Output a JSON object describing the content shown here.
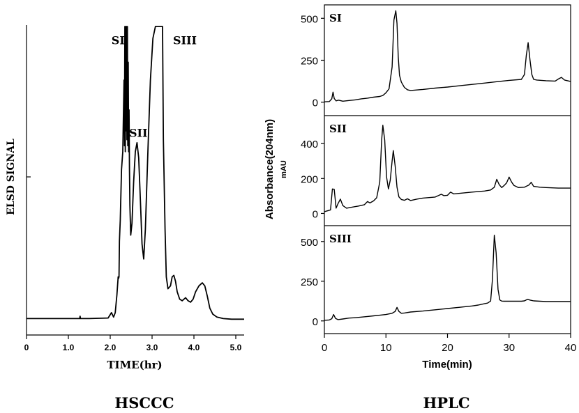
{
  "captions": {
    "left": "HSCCC",
    "right": "HPLC"
  },
  "chart_data": [
    {
      "type": "line",
      "id": "hsccc",
      "xlabel": "TIME(hr)",
      "ylabel": "ELSD  SIGNAL",
      "caption": "HSCCC",
      "xlim": [
        0,
        5.2
      ],
      "ylim": [
        0,
        1
      ],
      "xticks": [
        "0",
        "1.0",
        "2.0",
        "3.0",
        "4.0",
        "5.0"
      ],
      "xtick_values": [
        0,
        1.0,
        2.0,
        3.0,
        4.0,
        5.0
      ],
      "annotations": [
        {
          "text": "SI",
          "x": 2.03,
          "y": 0.94
        },
        {
          "text": "SII",
          "x": 2.45,
          "y": 0.63
        },
        {
          "text": "SIII",
          "x": 3.5,
          "y": 0.94
        }
      ],
      "series": [
        {
          "x": [
            0,
            1.27,
            1.28,
            1.29,
            1.3,
            1.5,
            1.95,
            2.03,
            2.08,
            2.12,
            2.16,
            2.18,
            2.19,
            2.2,
            2.21,
            2.22,
            2.24,
            2.27,
            2.3,
            2.33,
            2.34,
            2.35,
            2.36,
            2.37,
            2.38,
            2.39,
            2.4,
            2.41,
            2.42,
            2.43,
            2.44,
            2.45,
            2.46,
            2.47,
            2.49,
            2.52,
            2.56,
            2.6,
            2.64,
            2.68,
            2.72,
            2.76,
            2.8,
            2.84,
            2.9,
            2.96,
            3.02,
            3.08,
            3.1,
            3.25,
            3.27,
            3.31,
            3.34,
            3.38,
            3.44,
            3.48,
            3.52,
            3.56,
            3.6,
            3.66,
            3.72,
            3.8,
            3.86,
            3.92,
            3.98,
            4.04,
            4.12,
            4.2,
            4.26,
            4.32,
            4.38,
            4.45,
            4.55,
            4.7,
            4.9,
            5.2
          ],
          "y": [
            0.02,
            0.02,
            0.028,
            0.02,
            0.02,
            0.02,
            0.022,
            0.04,
            0.025,
            0.04,
            0.1,
            0.14,
            0.16,
            0.155,
            0.16,
            0.28,
            0.35,
            0.52,
            0.58,
            0.82,
            0.6,
            1.0,
            0.58,
            1.0,
            0.65,
            1.0,
            0.62,
            1.0,
            0.6,
            0.88,
            0.58,
            0.72,
            0.52,
            0.4,
            0.3,
            0.34,
            0.48,
            0.58,
            0.61,
            0.56,
            0.42,
            0.27,
            0.22,
            0.32,
            0.58,
            0.82,
            0.96,
            1.0,
            1.0,
            1.0,
            0.62,
            0.32,
            0.16,
            0.12,
            0.13,
            0.16,
            0.165,
            0.145,
            0.11,
            0.085,
            0.08,
            0.09,
            0.08,
            0.075,
            0.085,
            0.11,
            0.13,
            0.14,
            0.13,
            0.095,
            0.055,
            0.035,
            0.025,
            0.02,
            0.018,
            0.018
          ]
        }
      ]
    },
    {
      "type": "line",
      "id": "hplc",
      "xlabel": "Time(min)",
      "ylabel": "Absorbance(204nm)",
      "ylabel_unit": "mAU",
      "caption": "HPLC",
      "xlim": [
        0,
        40
      ],
      "xticks": [
        "0",
        "10",
        "20",
        "30",
        "40"
      ],
      "xtick_values": [
        0,
        10,
        20,
        30,
        40
      ],
      "panels": [
        {
          "label": "SI",
          "ylim": [
            -80,
            580
          ],
          "yticks": [
            0,
            250,
            500
          ],
          "ytick_labels": [
            "0",
            "250",
            "500"
          ],
          "x": [
            0,
            0.8,
            1.2,
            1.4,
            1.6,
            1.9,
            2.3,
            3,
            4,
            5,
            6,
            7,
            8,
            9,
            9.5,
            10,
            10.5,
            11,
            11.3,
            11.6,
            11.8,
            12,
            12.2,
            12.5,
            13,
            13.5,
            14,
            16,
            18,
            20,
            22,
            24,
            26,
            28,
            30,
            32,
            32.5,
            32.8,
            33.1,
            33.4,
            33.7,
            34,
            34.5,
            36,
            37.5,
            38,
            38.5,
            39,
            40
          ],
          "y": [
            2,
            4,
            20,
            60,
            22,
            8,
            12,
            6,
            10,
            14,
            20,
            24,
            30,
            34,
            40,
            56,
            80,
            210,
            490,
            545,
            470,
            270,
            160,
            120,
            88,
            74,
            70,
            76,
            84,
            90,
            98,
            106,
            114,
            122,
            130,
            136,
            165,
            280,
            355,
            250,
            165,
            136,
            132,
            128,
            126,
            138,
            148,
            132,
            124
          ]
        },
        {
          "label": "SII",
          "ylim": [
            -70,
            560
          ],
          "yticks": [
            0,
            200,
            400
          ],
          "ytick_labels": [
            "0",
            "200",
            "400"
          ],
          "x": [
            0,
            1.0,
            1.3,
            1.6,
            1.9,
            2.2,
            2.6,
            3.0,
            3.6,
            4.5,
            5.5,
            6.5,
            7.0,
            7.4,
            8,
            8.5,
            9.0,
            9.3,
            9.5,
            9.8,
            10.1,
            10.4,
            10.7,
            11.0,
            11.2,
            11.5,
            11.8,
            12.1,
            12.5,
            13.0,
            13.5,
            14,
            15,
            16,
            18,
            19,
            19.4,
            20,
            20.5,
            21,
            22,
            24,
            26,
            27,
            27.6,
            28.0,
            28.4,
            28.8,
            29.2,
            29.6,
            30.0,
            30.4,
            30.8,
            31.5,
            32.5,
            33.2,
            33.6,
            34.0,
            35,
            36,
            38,
            40
          ],
          "y": [
            10,
            20,
            140,
            138,
            30,
            55,
            82,
            45,
            30,
            36,
            42,
            50,
            68,
            60,
            72,
            90,
            180,
            420,
            505,
            420,
            210,
            140,
            190,
            300,
            360,
            270,
            150,
            95,
            80,
            75,
            84,
            74,
            82,
            88,
            94,
            110,
            102,
            104,
            122,
            112,
            115,
            122,
            128,
            134,
            150,
            195,
            165,
            148,
            160,
            175,
            208,
            180,
            160,
            148,
            150,
            162,
            178,
            155,
            150,
            148,
            145,
            145
          ]
        },
        {
          "label": "SIII",
          "ylim": [
            -80,
            600
          ],
          "yticks": [
            0,
            250,
            500
          ],
          "ytick_labels": [
            "0",
            "250",
            "500"
          ],
          "x": [
            0,
            0.8,
            1.2,
            1.5,
            1.8,
            2.2,
            3,
            4,
            5,
            6,
            7,
            8,
            9,
            10,
            11,
            11.5,
            11.8,
            12.1,
            12.5,
            13,
            14,
            16,
            18,
            20,
            22,
            24,
            25,
            26,
            26.5,
            27,
            27.3,
            27.6,
            27.9,
            28.2,
            28.5,
            28.8,
            29.2,
            30,
            31,
            32,
            32.5,
            33,
            33.5,
            34,
            35,
            36,
            38,
            40
          ],
          "y": [
            4,
            6,
            14,
            40,
            16,
            8,
            12,
            18,
            20,
            24,
            28,
            32,
            36,
            40,
            48,
            60,
            85,
            60,
            48,
            50,
            56,
            62,
            70,
            78,
            86,
            94,
            100,
            108,
            112,
            125,
            260,
            540,
            430,
            200,
            132,
            125,
            124,
            124,
            124,
            124,
            126,
            136,
            130,
            126,
            124,
            122,
            122,
            122
          ]
        }
      ]
    }
  ]
}
